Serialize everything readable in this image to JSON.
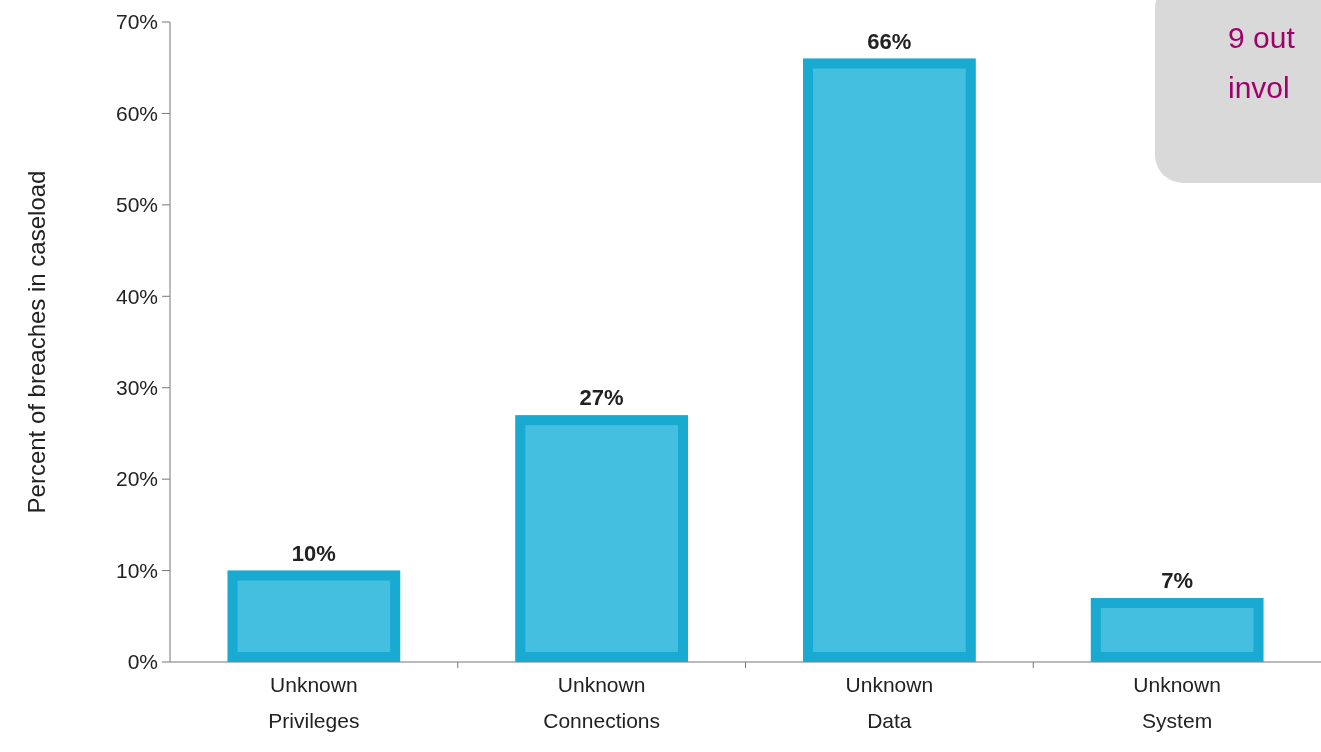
{
  "chart_data": {
    "type": "bar",
    "ylabel": "Percent of breaches in caseload",
    "categories": [
      "Unknown Privileges",
      "Unknown Connections",
      "Unknown Data",
      "Unknown System"
    ],
    "values": [
      10,
      27,
      66,
      7
    ],
    "color": "#45bfe0",
    "value_labels": [
      "10%",
      "27%",
      "66%",
      "7%"
    ],
    "ylim": [
      0,
      70
    ],
    "yticks": [
      {
        "value": 0,
        "label": "0%"
      },
      {
        "value": 10,
        "label": "10%"
      },
      {
        "value": 20,
        "label": "20%"
      },
      {
        "value": 30,
        "label": "30%"
      },
      {
        "value": 40,
        "label": "40%"
      },
      {
        "value": 50,
        "label": "50%"
      },
      {
        "value": 60,
        "label": "60%"
      },
      {
        "value": 70,
        "label": "70%"
      }
    ],
    "annotations": [
      "9 out\ninvol"
    ]
  }
}
